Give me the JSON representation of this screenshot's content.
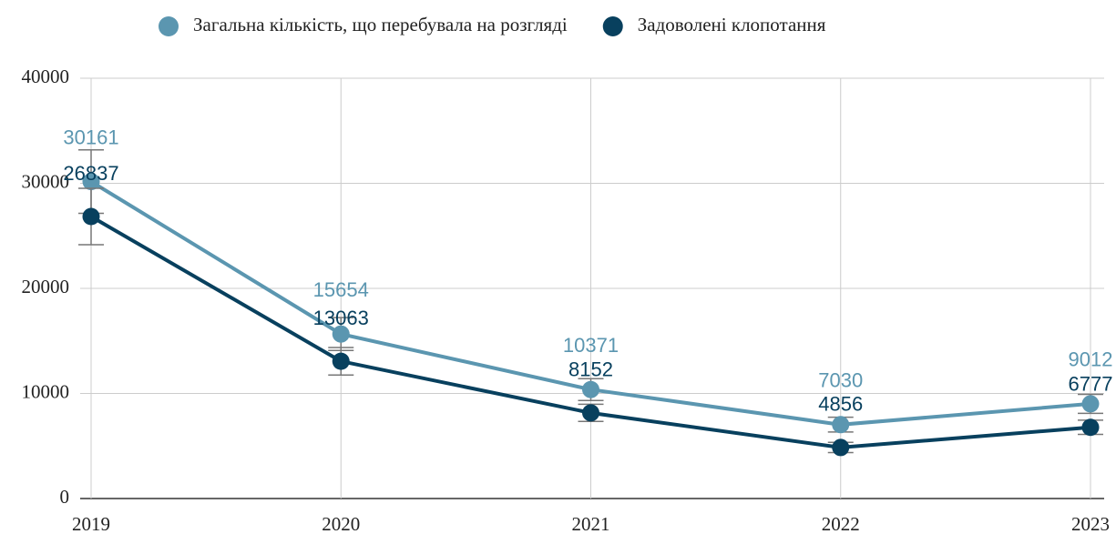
{
  "chart_data": {
    "type": "line",
    "categories": [
      "2019",
      "2020",
      "2021",
      "2022",
      "2023"
    ],
    "series": [
      {
        "name": "Загальна кількість, що перебувала на розгляді",
        "color": "#5b96b0",
        "values": [
          30161,
          15654,
          10371,
          7030,
          9012
        ],
        "errors": [
          3016,
          1565,
          1037,
          703,
          901
        ]
      },
      {
        "name": "Задоволені клопотання",
        "color": "#08405e",
        "values": [
          26837,
          13063,
          8152,
          4856,
          6777
        ],
        "errors": [
          2684,
          1306,
          815,
          486,
          678
        ]
      }
    ],
    "ylim": [
      0,
      40000
    ],
    "yticks": [
      0,
      10000,
      20000,
      30000,
      40000
    ],
    "grid": true,
    "legend": "top"
  }
}
